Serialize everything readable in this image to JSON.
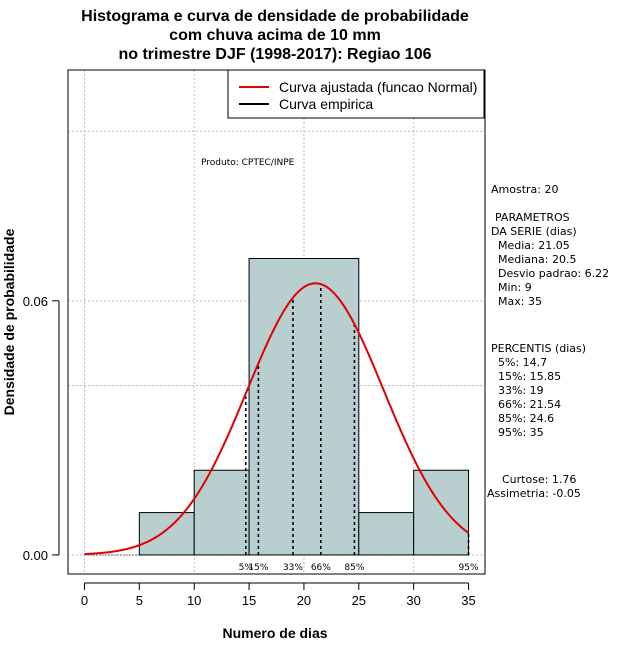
{
  "chart_data": {
    "type": "histogram",
    "title_lines": [
      "Histograma e curva de densidade de probabilidade",
      "com chuva acima de 10 mm",
      "no trimestre DJF (1998-2017): Regiao 106"
    ],
    "xlabel": "Numero de dias",
    "ylabel": "Densidade de probabilidade",
    "xlim": [
      -1.5,
      36.5
    ],
    "ylim": [
      -0.0045,
      0.1145
    ],
    "x_ticks": [
      0,
      5,
      10,
      15,
      20,
      25,
      30,
      35
    ],
    "y_ticks": [
      0.0,
      0.06
    ],
    "y_tick_labels": [
      "0.00",
      "0.06"
    ],
    "x_grid": [
      0,
      10,
      20,
      30
    ],
    "y_grid": [
      0.0,
      0.04,
      0.06,
      0.1
    ],
    "bins": [
      {
        "start": 5,
        "end": 10,
        "density": 0.01
      },
      {
        "start": 10,
        "end": 15,
        "density": 0.02
      },
      {
        "start": 15,
        "end": 25,
        "density": 0.07
      },
      {
        "start": 25,
        "end": 30,
        "density": 0.01
      },
      {
        "start": 30,
        "end": 35,
        "density": 0.02
      }
    ],
    "bar_color": "#b9cfcf",
    "normal_fit": {
      "mean": 21.05,
      "sd": 6.22,
      "x_start": 0,
      "x_end": 35,
      "color": "#e00000"
    },
    "percentiles": [
      {
        "label": "5%",
        "value": 14.7
      },
      {
        "label": "15%",
        "value": 15.85
      },
      {
        "label": "33%",
        "value": 19
      },
      {
        "label": "66%",
        "value": 21.54
      },
      {
        "label": "85%",
        "value": 24.6
      },
      {
        "label": "95%",
        "value": 35
      }
    ],
    "legend": [
      {
        "label": "Curva ajustada (funcao Normal)",
        "color": "#e00000"
      },
      {
        "label": "Curva empirica",
        "color": "#000000"
      }
    ],
    "credit": "Produto: CPTEC/INPE",
    "stats_lines": [
      "Amostra: 20",
      "PARAMETROS",
      "DA SERIE (dias)",
      "Media: 21.05",
      "Mediana: 20.5",
      "Desvio padrao: 6.22",
      "Min: 9",
      "Max: 35",
      "PERCENTIS (dias)",
      "5%: 14.7",
      "15%: 15.85",
      "33%: 19",
      "66%: 21.54",
      "85%: 24.6",
      "95%: 35",
      "Curtose: 1.76",
      "Assimetria: -0.05"
    ]
  }
}
